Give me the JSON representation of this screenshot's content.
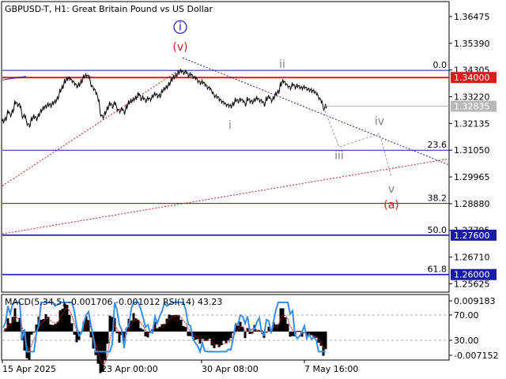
{
  "header": {
    "symbol": "GBPUSD-T, H1:",
    "description": "Great Britain Pound vs US Dollar"
  },
  "colors": {
    "price": "#000000",
    "resistance": "#e0191c",
    "fib": "#1a1aa8",
    "grid": "#c8c8c8",
    "tag_bg": "#e0191c",
    "current_tag_bg": "#b8b8b8",
    "wave_blue": "#1a1aa8",
    "wave_red": "#cc1a1a",
    "wave_gray": "#808080",
    "macd_hist": "#000000",
    "macd_signal": "#cc1a1a",
    "rsi_line": "#3a8ee8"
  },
  "price_axis_ticks": [
    "1.36475",
    "1.35390",
    "1.34305",
    "1.33220",
    "1.32135",
    "1.31050",
    "1.29965",
    "1.28880",
    "1.27795",
    "1.26710",
    "1.25625"
  ],
  "price_tags": [
    {
      "value": "1.34000",
      "kind": "resistance"
    },
    {
      "value": "1.32835",
      "kind": "current"
    },
    {
      "value": "1.27600",
      "kind": "fib"
    },
    {
      "value": "1.26000",
      "kind": "fib"
    }
  ],
  "fib_levels": [
    {
      "label": "0.0",
      "price": 1.3429
    },
    {
      "label": "23.6",
      "price": 1.3105
    },
    {
      "label": "38.2",
      "price": 1.2889
    },
    {
      "label": "50.0",
      "price": 1.276
    },
    {
      "label": "61.8",
      "price": 1.26
    }
  ],
  "resistance_level": 1.34,
  "wave_labels": [
    {
      "text": "i",
      "style": "circle",
      "color": "blue",
      "index": 75,
      "price": 1.3592
    },
    {
      "text": "(v)",
      "style": "plain",
      "color": "red",
      "index": 75,
      "price": 1.3509
    },
    {
      "text": "ii",
      "style": "plain",
      "color": "gray",
      "index": 118,
      "price": 1.3439
    },
    {
      "text": "i",
      "style": "plain",
      "color": "gray",
      "index": 96,
      "price": 1.3193
    },
    {
      "text": "iii",
      "style": "plain",
      "color": "gray",
      "index": 142,
      "price": 1.3069
    },
    {
      "text": "iv",
      "style": "plain",
      "color": "gray",
      "index": 159,
      "price": 1.3208
    },
    {
      "text": "v",
      "style": "plain",
      "color": "gray",
      "index": 164,
      "price": 1.2932
    },
    {
      "text": "(a)",
      "style": "plain",
      "color": "red",
      "index": 164,
      "price": 1.2868
    }
  ],
  "projection_path": [
    {
      "index": 136,
      "price": 1.3265
    },
    {
      "index": 142,
      "price": 1.3118
    },
    {
      "index": 159,
      "price": 1.3172
    },
    {
      "index": 164,
      "price": 1.2996
    }
  ],
  "indicator": {
    "label": "MACD(5,34,5) -0.001706 -0.001012 RSI(14) 43.23",
    "axis_ticks": [
      "0.009183",
      "70.00",
      "30.00",
      "-0.007152"
    ]
  },
  "time_axis": [
    "15 Apr 2025",
    "23 Apr 00:00",
    "30 Apr 08:00",
    "7 May 16:00"
  ],
  "chart_data": {
    "type": "line",
    "title": "",
    "xlabel": "",
    "ylabel": "",
    "ylim": [
      1.2535,
      1.3702
    ],
    "x_start_label": "15 Apr 2025",
    "bars_count": 137,
    "series": [
      {
        "name": "GBPUSD-T H1",
        "values": [
          1.3223,
          1.3232,
          1.3261,
          1.3247,
          1.3265,
          1.3299,
          1.3289,
          1.3286,
          1.3241,
          1.3244,
          1.3212,
          1.3205,
          1.3232,
          1.3241,
          1.3232,
          1.3248,
          1.3266,
          1.3277,
          1.3282,
          1.329,
          1.3286,
          1.3296,
          1.3304,
          1.3318,
          1.3347,
          1.3362,
          1.3385,
          1.3395,
          1.3395,
          1.3386,
          1.3376,
          1.3364,
          1.3371,
          1.3385,
          1.3404,
          1.3408,
          1.3404,
          1.3368,
          1.3355,
          1.334,
          1.3311,
          1.3248,
          1.324,
          1.3257,
          1.3276,
          1.3294,
          1.3282,
          1.3296,
          1.3271,
          1.3262,
          1.3272,
          1.3258,
          1.3281,
          1.3299,
          1.3304,
          1.3311,
          1.3319,
          1.3333,
          1.3314,
          1.3317,
          1.3305,
          1.3316,
          1.3311,
          1.3324,
          1.3333,
          1.3325,
          1.3325,
          1.3345,
          1.3355,
          1.3362,
          1.3374,
          1.3392,
          1.3402,
          1.341,
          1.3421,
          1.3426,
          1.3418,
          1.3423,
          1.3408,
          1.3413,
          1.3402,
          1.3399,
          1.3386,
          1.3378,
          1.3381,
          1.3372,
          1.3359,
          1.3357,
          1.3341,
          1.3324,
          1.3322,
          1.3312,
          1.3302,
          1.3297,
          1.3289,
          1.3286,
          1.3283,
          1.3293,
          1.3309,
          1.3303,
          1.3311,
          1.3306,
          1.329,
          1.3313,
          1.3304,
          1.33,
          1.3309,
          1.3316,
          1.3307,
          1.3303,
          1.3291,
          1.3314,
          1.3321,
          1.3306,
          1.3318,
          1.3334,
          1.3342,
          1.3373,
          1.3385,
          1.3375,
          1.3364,
          1.3358,
          1.3372,
          1.3361,
          1.3366,
          1.336,
          1.3357,
          1.3361,
          1.3353,
          1.3349,
          1.3346,
          1.3343,
          1.3335,
          1.3317,
          1.3305,
          1.3273,
          1.3284
        ]
      }
    ],
    "annotations": [
      "1.34000 resistance",
      "Fibonacci 0.0 / 23.6 / 38.2 / 50.0 / 61.8",
      "wave count i ii iii iv v (a)"
    ]
  }
}
